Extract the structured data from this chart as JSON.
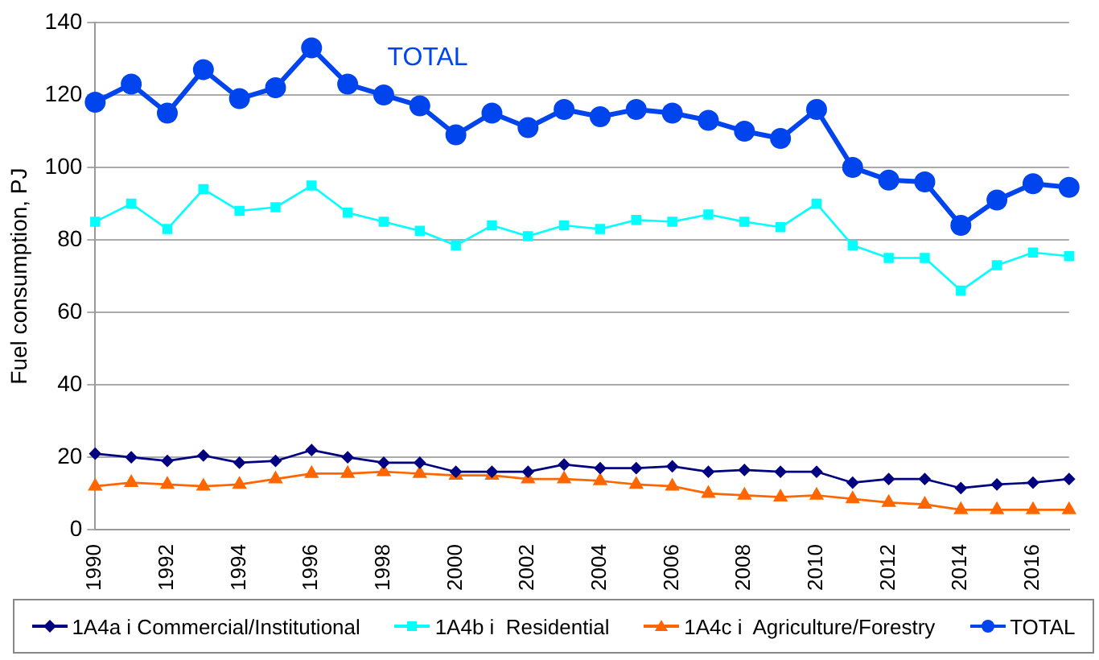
{
  "chart_data": {
    "type": "line",
    "ylabel": "Fuel consumption, PJ",
    "categories": [
      "1990",
      null,
      "1992",
      null,
      "1994",
      null,
      "1996",
      null,
      "1998",
      null,
      "2000",
      null,
      "2002",
      null,
      "2004",
      null,
      "2006",
      null,
      "2008",
      null,
      "2010",
      null,
      "2012",
      null,
      "2014",
      null,
      "2016",
      null
    ],
    "series": [
      {
        "name": "1A4a i Commercial/Institutional",
        "color": "#000080",
        "marker": "diamond",
        "values": [
          21,
          20,
          19,
          20.5,
          18.5,
          19,
          22,
          20,
          18.5,
          18.5,
          16,
          16,
          16,
          18,
          17,
          17,
          17.5,
          16,
          16.5,
          16,
          16,
          13,
          14,
          14,
          11.5,
          12.5,
          13,
          14
        ]
      },
      {
        "name": "1A4b i  Residential",
        "color": "#00ffff",
        "marker": "square",
        "values": [
          85,
          90,
          83,
          94,
          88,
          89,
          95,
          87.5,
          85,
          82.5,
          78.5,
          84,
          81,
          84,
          83,
          85.5,
          85,
          87,
          85,
          83.5,
          90,
          78.5,
          75,
          75,
          66,
          73,
          76.5,
          75.5
        ]
      },
      {
        "name": "1A4c i  Agriculture/Forestry",
        "color": "#ff6600",
        "marker": "triangle",
        "values": [
          12,
          13,
          12.5,
          12,
          12.5,
          14,
          15.5,
          15.5,
          16,
          15.5,
          15,
          15,
          14,
          14,
          13.5,
          12.5,
          12,
          10,
          9.5,
          9,
          9.5,
          8.5,
          7.5,
          7,
          5.5,
          5.5,
          5.5,
          5.5
        ]
      },
      {
        "name": "TOTAL",
        "color": "#0044ee",
        "marker": "circle",
        "values": [
          118,
          123,
          115,
          127,
          119,
          122,
          133,
          123,
          120,
          117,
          109,
          115,
          111,
          116,
          114,
          116,
          115,
          113,
          110,
          108,
          116,
          100,
          96.5,
          96,
          84,
          91,
          95.5,
          94.5
        ]
      }
    ],
    "annotations": [
      "TOTAL"
    ],
    "ylim": [
      0,
      140
    ],
    "yticks": [
      0,
      20,
      40,
      60,
      80,
      100,
      120,
      140
    ],
    "grid": "y",
    "legend": "bottom"
  }
}
